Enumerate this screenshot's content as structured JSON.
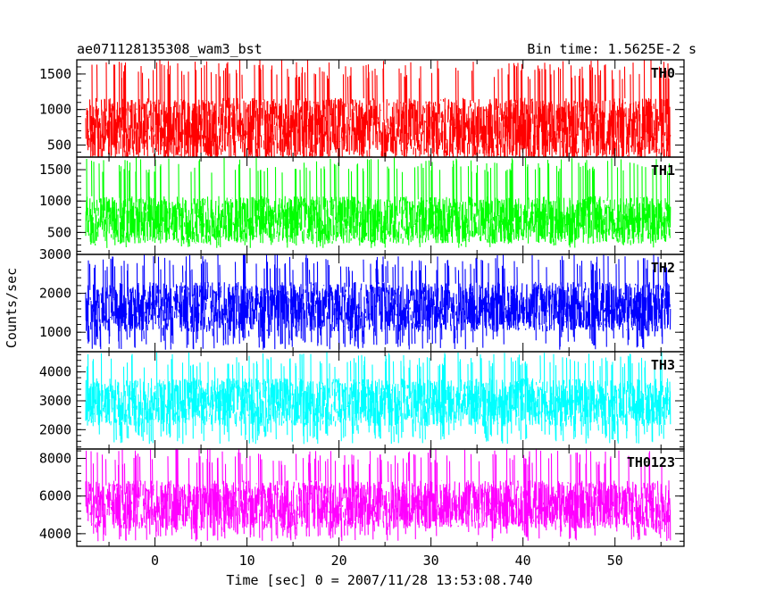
{
  "header": {
    "title": "ae071128135308_wam3_bst",
    "bin_time": "Bin time: 1.5625E-2 s"
  },
  "chart_data": {
    "type": "line",
    "xlabel": "Time [sec] 0 = 2007/11/28 13:53:08.740",
    "ylabel": "Counts/sec",
    "xlim": [
      -8.5,
      57.5
    ],
    "xticks": [
      0,
      10,
      20,
      30,
      40,
      50
    ],
    "data_x_range": [
      -7.5,
      56.0
    ],
    "grid": false,
    "panels": [
      {
        "name": "TH0",
        "color": "#ff0000",
        "ylim": [
          330,
          1700
        ],
        "yticks": [
          500,
          1000,
          1500
        ],
        "mean": 750,
        "low": 120,
        "high": 1700
      },
      {
        "name": "TH1",
        "color": "#00ff00",
        "ylim": [
          150,
          1700
        ],
        "yticks": [
          500,
          1000,
          1500
        ],
        "mean": 700,
        "low": 250,
        "high": 1700
      },
      {
        "name": "TH2",
        "color": "#0000ff",
        "ylim": [
          500,
          3000
        ],
        "yticks": [
          1000,
          2000,
          3000
        ],
        "mean": 1650,
        "low": 550,
        "high": 3000
      },
      {
        "name": "TH3",
        "color": "#00ffff",
        "ylim": [
          1330,
          4700
        ],
        "yticks": [
          2000,
          3000,
          4000
        ],
        "mean": 2950,
        "low": 1500,
        "high": 4700
      },
      {
        "name": "TH0123",
        "color": "#ff00ff",
        "ylim": [
          3330,
          8500
        ],
        "yticks": [
          4000,
          6000,
          8000
        ],
        "mean": 5550,
        "low": 3600,
        "high": 8500
      }
    ]
  }
}
